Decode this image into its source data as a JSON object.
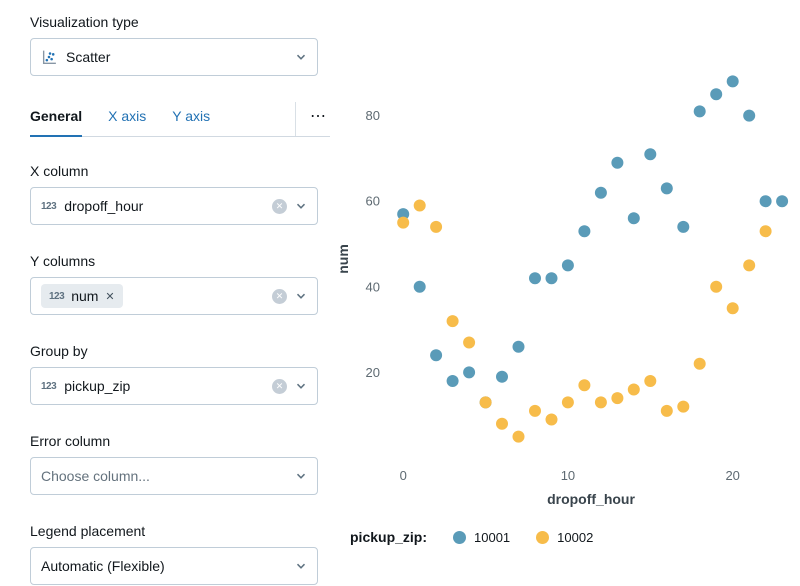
{
  "panel": {
    "viz_type": {
      "label": "Visualization type",
      "value": "Scatter"
    },
    "tabs": {
      "items": [
        {
          "label": "General",
          "active": true
        },
        {
          "label": "X axis",
          "active": false
        },
        {
          "label": "Y axis",
          "active": false
        }
      ],
      "more": "⋯"
    },
    "x_column": {
      "label": "X column",
      "value": "dropoff_hour",
      "type_icon": "123"
    },
    "y_columns": {
      "label": "Y columns",
      "tag": "num",
      "tag_remove": "✕",
      "type_icon": "123"
    },
    "group_by": {
      "label": "Group by",
      "value": "pickup_zip",
      "type_icon": "123"
    },
    "error_column": {
      "label": "Error column",
      "placeholder": "Choose column..."
    },
    "legend_placement": {
      "label": "Legend placement",
      "value": "Automatic (Flexible)"
    },
    "clear_icon": "✕"
  },
  "chart_data": {
    "type": "scatter",
    "xlabel": "dropoff_hour",
    "ylabel": "num",
    "xlim": [
      -0.8,
      23.6
    ],
    "ylim": [
      0,
      93
    ],
    "xticks": [
      0,
      10,
      20
    ],
    "yticks": [
      20,
      40,
      60,
      80
    ],
    "grid": false,
    "legend_title": "pickup_zip:",
    "legend_position": "bottom",
    "series": [
      {
        "name": "10001",
        "color": "#5A9BB8",
        "points": [
          [
            0,
            57
          ],
          [
            1,
            40
          ],
          [
            2,
            24
          ],
          [
            3,
            18
          ],
          [
            4,
            20
          ],
          [
            5,
            13
          ],
          [
            6,
            19
          ],
          [
            7,
            26
          ],
          [
            8,
            42
          ],
          [
            9,
            42
          ],
          [
            10,
            45
          ],
          [
            11,
            53
          ],
          [
            12,
            62
          ],
          [
            13,
            69
          ],
          [
            14,
            56
          ],
          [
            15,
            71
          ],
          [
            16,
            63
          ],
          [
            17,
            54
          ],
          [
            18,
            81
          ],
          [
            19,
            85
          ],
          [
            20,
            88
          ],
          [
            21,
            80
          ],
          [
            22,
            60
          ],
          [
            23,
            60
          ]
        ]
      },
      {
        "name": "10002",
        "color": "#F7BC4A",
        "points": [
          [
            0,
            55
          ],
          [
            1,
            59
          ],
          [
            2,
            54
          ],
          [
            3,
            32
          ],
          [
            4,
            27
          ],
          [
            5,
            13
          ],
          [
            6,
            8
          ],
          [
            7,
            5
          ],
          [
            8,
            11
          ],
          [
            9,
            9
          ],
          [
            10,
            13
          ],
          [
            11,
            17
          ],
          [
            12,
            13
          ],
          [
            13,
            14
          ],
          [
            14,
            16
          ],
          [
            15,
            18
          ],
          [
            16,
            11
          ],
          [
            17,
            12
          ],
          [
            18,
            22
          ],
          [
            19,
            40
          ],
          [
            20,
            35
          ],
          [
            21,
            45
          ],
          [
            22,
            53
          ]
        ]
      }
    ]
  }
}
